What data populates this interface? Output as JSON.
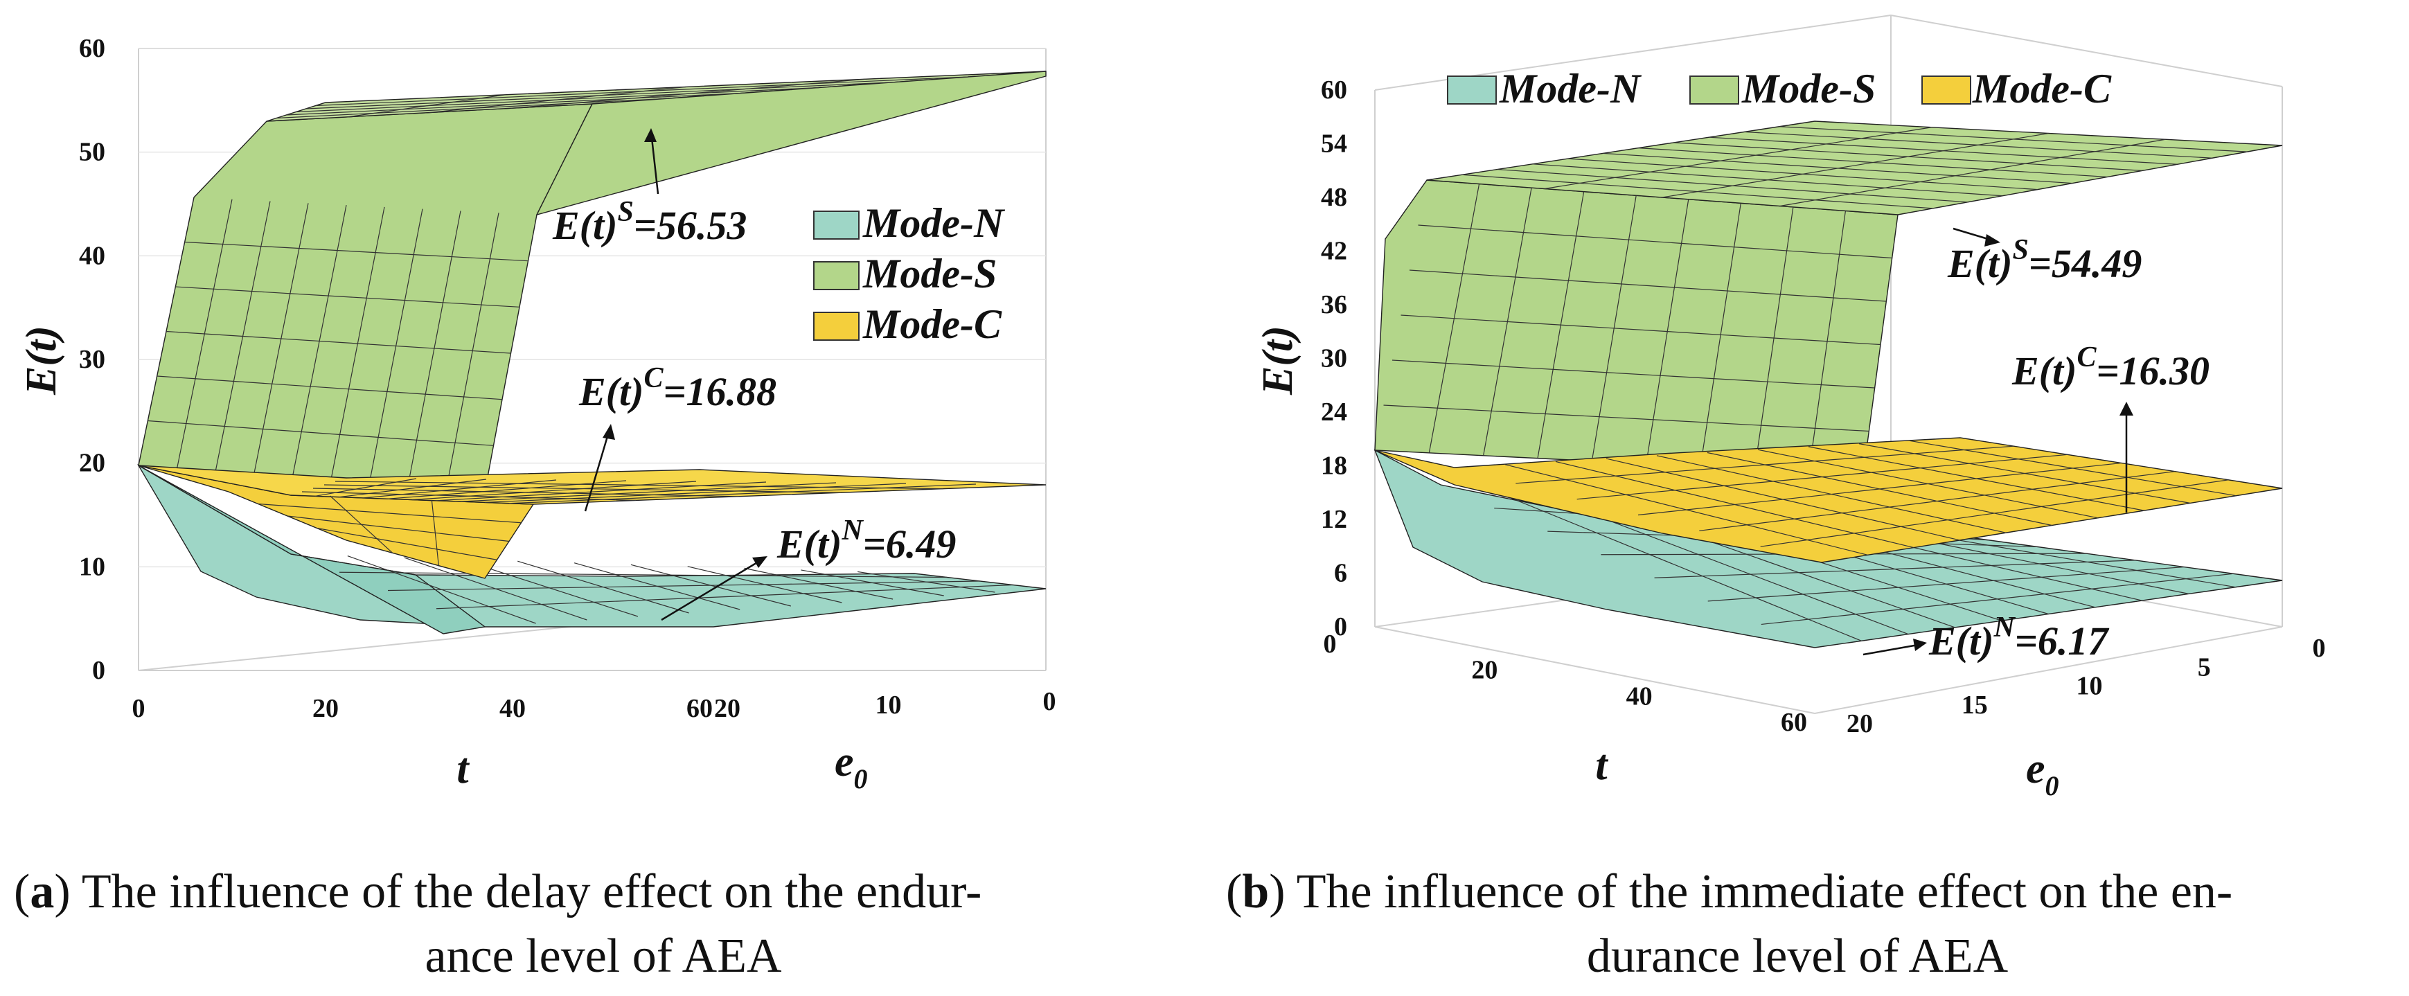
{
  "chart_data": [
    {
      "type": "surface3d",
      "panel_label": "a",
      "caption_line1": "The influence of the delay effect on the endur-",
      "caption_line2": "ance level of AEA",
      "xlabel": "t",
      "ylabel": "e",
      "ylabel_sub": "0",
      "zlabel": "E(t)",
      "z_range": [
        0,
        60
      ],
      "z_ticks": [
        "0",
        "10",
        "20",
        "30",
        "40",
        "50",
        "60"
      ],
      "t_ticks": [
        "0",
        "20",
        "40",
        "60"
      ],
      "e0_ticks": [
        "20",
        "10",
        "0"
      ],
      "legend": [
        "Mode-N",
        "Mode-S",
        "Mode-C"
      ],
      "colors": {
        "Mode-N": "#9ed6c6",
        "Mode-S": "#b3d68a",
        "Mode-C": "#f4cf3c"
      },
      "annotations": [
        {
          "series": "Mode-S",
          "base": "E(t)",
          "sup": "S",
          "value": "=56.53"
        },
        {
          "series": "Mode-C",
          "base": "E(t)",
          "sup": "C",
          "value": "=16.88"
        },
        {
          "series": "Mode-N",
          "base": "E(t)",
          "sup": "N",
          "value": "=6.49"
        }
      ],
      "series": [
        {
          "name": "Mode-S",
          "initial": 20,
          "steady": 56.53
        },
        {
          "name": "Mode-C",
          "initial": 20,
          "steady": 16.88
        },
        {
          "name": "Mode-N",
          "initial": 20,
          "steady": 6.49
        }
      ]
    },
    {
      "type": "surface3d",
      "panel_label": "b",
      "caption_line1": "The influence of the immediate effect on the en-",
      "caption_line2": "durance level of AEA",
      "xlabel": "t",
      "ylabel": "e",
      "ylabel_sub": "0",
      "zlabel": "E(t)",
      "z_range": [
        0,
        60
      ],
      "z_ticks": [
        "0",
        "6",
        "12",
        "18",
        "24",
        "30",
        "36",
        "42",
        "48",
        "54",
        "60"
      ],
      "t_ticks": [
        "0",
        "20",
        "40",
        "60"
      ],
      "e0_ticks": [
        "20",
        "15",
        "10",
        "5",
        "0"
      ],
      "legend": [
        "Mode-N",
        "Mode-S",
        "Mode-C"
      ],
      "colors": {
        "Mode-N": "#9ed6c6",
        "Mode-S": "#b3d68a",
        "Mode-C": "#f4cf3c"
      },
      "annotations": [
        {
          "series": "Mode-S",
          "base": "E(t)",
          "sup": "S",
          "value": "=54.49"
        },
        {
          "series": "Mode-C",
          "base": "E(t)",
          "sup": "C",
          "value": "=16.30"
        },
        {
          "series": "Mode-N",
          "base": "E(t)",
          "sup": "N",
          "value": "=6.17"
        }
      ],
      "series": [
        {
          "name": "Mode-S",
          "initial": 20,
          "steady": 54.49
        },
        {
          "name": "Mode-C",
          "initial": 20,
          "steady": 16.3
        },
        {
          "name": "Mode-N",
          "initial": 20,
          "steady": 6.17
        }
      ]
    }
  ]
}
